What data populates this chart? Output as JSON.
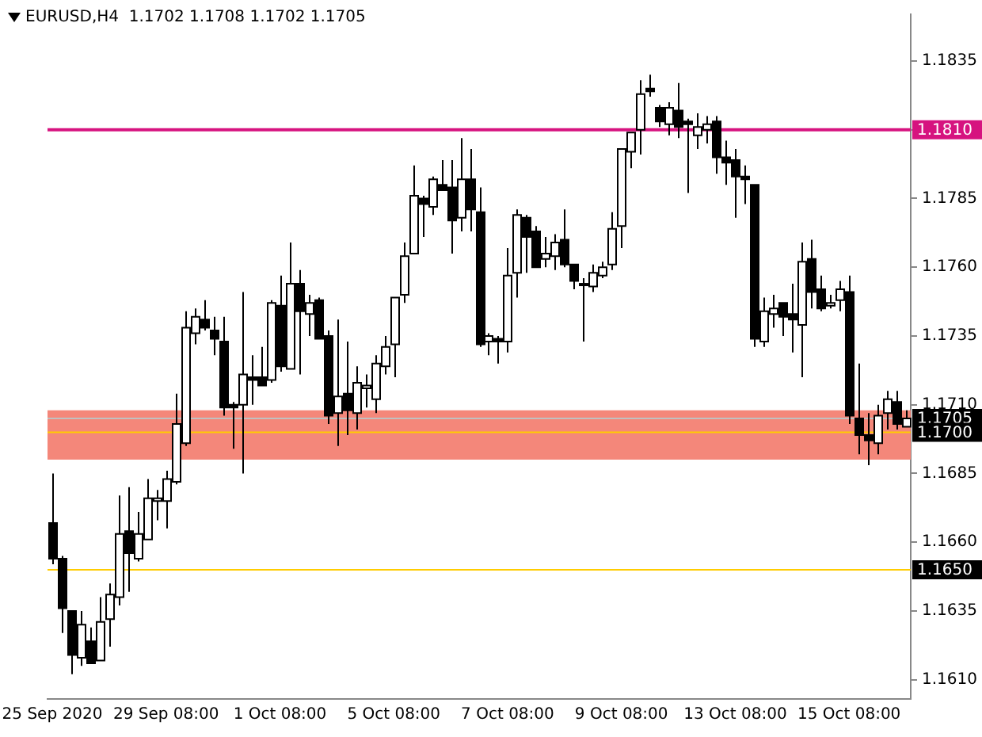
{
  "chart_data": {
    "type": "candlestick",
    "title": "EURUSD,H4  1.1702 1.1708 1.1702 1.1705",
    "categories": [
      "25 Sep 2020",
      null,
      null,
      null,
      null,
      null,
      null,
      null,
      null,
      null,
      null,
      null,
      "29 Sep 08:00",
      null,
      null,
      null,
      null,
      null,
      null,
      null,
      null,
      null,
      null,
      null,
      "1 Oct 08:00",
      null,
      null,
      null,
      null,
      null,
      null,
      null,
      null,
      null,
      null,
      null,
      "5 Oct 08:00",
      null,
      null,
      null,
      null,
      null,
      null,
      null,
      null,
      null,
      null,
      null,
      "7 Oct 08:00",
      null,
      null,
      null,
      null,
      null,
      null,
      null,
      null,
      null,
      null,
      null,
      "9 Oct 08:00",
      null,
      null,
      null,
      null,
      null,
      null,
      null,
      null,
      null,
      null,
      null,
      "13 Oct 08:00",
      null,
      null,
      null,
      null,
      null,
      null,
      null,
      null,
      null,
      null,
      null,
      "15 Oct 08:00",
      null,
      null,
      null,
      null,
      null,
      null
    ],
    "color": "#000000",
    "ohlc": [
      [
        1.1667,
        1.1685,
        1.1652,
        1.1654
      ],
      [
        1.1654,
        1.1655,
        1.1627,
        1.1636
      ],
      [
        1.1635,
        1.1635,
        1.1612,
        1.1619
      ],
      [
        1.1618,
        1.1635,
        1.1615,
        1.163
      ],
      [
        1.1624,
        1.1629,
        1.1616,
        1.1616
      ],
      [
        1.1617,
        1.164,
        1.1617,
        1.1631
      ],
      [
        1.1632,
        1.1645,
        1.1622,
        1.1641
      ],
      [
        1.164,
        1.1677,
        1.1637,
        1.1663
      ],
      [
        1.1664,
        1.168,
        1.1642,
        1.1656
      ],
      [
        1.1654,
        1.1671,
        1.1653,
        1.1663
      ],
      [
        1.1661,
        1.1683,
        1.1661,
        1.1676
      ],
      [
        1.1675,
        1.1679,
        1.1668,
        1.1676
      ],
      [
        1.1675,
        1.1686,
        1.1665,
        1.1683
      ],
      [
        1.1682,
        1.1714,
        1.1681,
        1.1703
      ],
      [
        1.1696,
        1.1744,
        1.1695,
        1.1738
      ],
      [
        1.1736,
        1.1745,
        1.1732,
        1.1742
      ],
      [
        1.1741,
        1.1748,
        1.1737,
        1.1738
      ],
      [
        1.1737,
        1.1742,
        1.1728,
        1.1734
      ],
      [
        1.1733,
        1.1742,
        1.1706,
        1.1709
      ],
      [
        1.171,
        1.1711,
        1.1694,
        1.1709
      ],
      [
        1.171,
        1.1751,
        1.1685,
        1.1721
      ],
      [
        1.172,
        1.1728,
        1.171,
        1.1719
      ],
      [
        1.172,
        1.1731,
        1.1717,
        1.1717
      ],
      [
        1.1719,
        1.1748,
        1.1718,
        1.1747
      ],
      [
        1.1746,
        1.1757,
        1.1722,
        1.1724
      ],
      [
        1.1723,
        1.1769,
        1.1723,
        1.1754
      ],
      [
        1.1754,
        1.1759,
        1.1721,
        1.1744
      ],
      [
        1.1743,
        1.175,
        1.1735,
        1.1747
      ],
      [
        1.1748,
        1.1749,
        1.1734,
        1.1734
      ],
      [
        1.1735,
        1.1737,
        1.1703,
        1.1706
      ],
      [
        1.1707,
        1.1741,
        1.1695,
        1.1713
      ],
      [
        1.1714,
        1.1733,
        1.1699,
        1.1708
      ],
      [
        1.1707,
        1.1724,
        1.1701,
        1.1718
      ],
      [
        1.1716,
        1.1721,
        1.1709,
        1.1717
      ],
      [
        1.1712,
        1.1728,
        1.1707,
        1.1725
      ],
      [
        1.1724,
        1.1735,
        1.1721,
        1.1731
      ],
      [
        1.1732,
        1.1749,
        1.172,
        1.1749
      ],
      [
        1.175,
        1.1769,
        1.1747,
        1.1764
      ],
      [
        1.1765,
        1.1797,
        1.1765,
        1.1786
      ],
      [
        1.1785,
        1.1786,
        1.1771,
        1.1783
      ],
      [
        1.1782,
        1.1793,
        1.1779,
        1.1792
      ],
      [
        1.179,
        1.1799,
        1.1788,
        1.1788
      ],
      [
        1.1789,
        1.1799,
        1.1765,
        1.1777
      ],
      [
        1.1778,
        1.1807,
        1.1773,
        1.1792
      ],
      [
        1.1792,
        1.1803,
        1.1773,
        1.1781
      ],
      [
        1.178,
        1.1789,
        1.1731,
        1.1732
      ],
      [
        1.1733,
        1.1736,
        1.1728,
        1.1735
      ],
      [
        1.1734,
        1.1735,
        1.1725,
        1.1733
      ],
      [
        1.1733,
        1.1767,
        1.1729,
        1.1757
      ],
      [
        1.1758,
        1.1781,
        1.1749,
        1.1779
      ],
      [
        1.1778,
        1.1779,
        1.1758,
        1.1771
      ],
      [
        1.1773,
        1.1775,
        1.176,
        1.176
      ],
      [
        1.1763,
        1.1771,
        1.176,
        1.1765
      ],
      [
        1.1764,
        1.1772,
        1.1759,
        1.1769
      ],
      [
        1.177,
        1.1781,
        1.176,
        1.1761
      ],
      [
        1.1761,
        1.1761,
        1.1752,
        1.1755
      ],
      [
        1.1754,
        1.1756,
        1.1733,
        1.1754
      ],
      [
        1.1753,
        1.1761,
        1.1751,
        1.1758
      ],
      [
        1.1757,
        1.1762,
        1.1756,
        1.176
      ],
      [
        1.1761,
        1.178,
        1.1759,
        1.1774
      ],
      [
        1.1775,
        1.1803,
        1.1767,
        1.1803
      ],
      [
        1.1802,
        1.1809,
        1.1796,
        1.1809
      ],
      [
        1.181,
        1.1828,
        1.1801,
        1.1823
      ],
      [
        1.1825,
        1.183,
        1.1822,
        1.1824
      ],
      [
        1.1818,
        1.1819,
        1.1811,
        1.1813
      ],
      [
        1.1812,
        1.182,
        1.1808,
        1.1818
      ],
      [
        1.1817,
        1.1827,
        1.1807,
        1.1811
      ],
      [
        1.1813,
        1.1814,
        1.1787,
        1.1812
      ],
      [
        1.1808,
        1.1816,
        1.1803,
        1.1811
      ],
      [
        1.181,
        1.1815,
        1.1805,
        1.1812
      ],
      [
        1.1813,
        1.1815,
        1.1794,
        1.18
      ],
      [
        1.18,
        1.1806,
        1.179,
        1.1798
      ],
      [
        1.1799,
        1.1803,
        1.1778,
        1.1793
      ],
      [
        1.1793,
        1.1797,
        1.1783,
        1.1792
      ],
      [
        1.179,
        1.179,
        1.1731,
        1.1734
      ],
      [
        1.1733,
        1.1749,
        1.1731,
        1.1744
      ],
      [
        1.1743,
        1.175,
        1.1738,
        1.1745
      ],
      [
        1.1747,
        1.1747,
        1.1735,
        1.1742
      ],
      [
        1.1743,
        1.1754,
        1.1729,
        1.1741
      ],
      [
        1.1739,
        1.1769,
        1.172,
        1.1762
      ],
      [
        1.1763,
        1.177,
        1.1745,
        1.1751
      ],
      [
        1.1752,
        1.1757,
        1.1744,
        1.1745
      ],
      [
        1.1746,
        1.175,
        1.1745,
        1.1747
      ],
      [
        1.1748,
        1.1755,
        1.1744,
        1.1752
      ],
      [
        1.1751,
        1.1757,
        1.1703,
        1.1706
      ],
      [
        1.1705,
        1.1725,
        1.1692,
        1.1699
      ],
      [
        1.1699,
        1.1707,
        1.1688,
        1.1697
      ],
      [
        1.1696,
        1.171,
        1.1692,
        1.1706
      ],
      [
        1.1707,
        1.1715,
        1.1701,
        1.1712
      ],
      [
        1.1711,
        1.1715,
        1.1701,
        1.1703
      ],
      [
        1.1702,
        1.1708,
        1.1702,
        1.1705
      ]
    ],
    "ylim": [
      1.1603,
      1.1852
    ],
    "yticks": [
      {
        "value": 1.1835,
        "label": "1.1835"
      },
      {
        "value": 1.181,
        "label": null
      },
      {
        "value": 1.1785,
        "label": "1.1785"
      },
      {
        "value": 1.176,
        "label": "1.1760"
      },
      {
        "value": 1.1735,
        "label": "1.1735"
      },
      {
        "value": 1.171,
        "label": "1.1710"
      },
      {
        "value": 1.1685,
        "label": "1.1685"
      },
      {
        "value": 1.166,
        "label": "1.1660"
      },
      {
        "value": 1.1635,
        "label": "1.1635"
      },
      {
        "value": 1.161,
        "label": "1.1610"
      }
    ],
    "bands": [
      {
        "axis": "y",
        "from": 1.169,
        "to": 1.1708,
        "color": "#f4877a"
      }
    ],
    "ref_lines": [
      {
        "axis": "y",
        "value": 1.1705,
        "label": "1.1705",
        "color": "#c0c0c0"
      },
      {
        "axis": "y",
        "value": 1.181,
        "label": "1.1810",
        "color": "#d6137f"
      },
      {
        "axis": "y",
        "value": 1.17,
        "label": "1.1700",
        "color": "#ffcc00"
      },
      {
        "axis": "y",
        "value": 1.165,
        "label": "1.1650",
        "color": "#ffcc00"
      }
    ],
    "grid": false,
    "legend": false
  }
}
